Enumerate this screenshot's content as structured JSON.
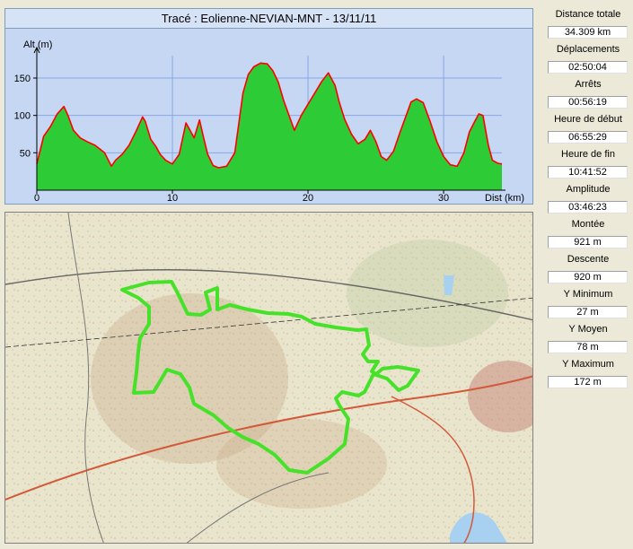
{
  "chart_title": "Tracé : Eolienne-NEVIAN-MNT - 13/11/11",
  "stats": [
    {
      "label": "Distance totale",
      "value": "34.309 km"
    },
    {
      "label": "Déplacements",
      "value": "02:50:04"
    },
    {
      "label": "Arrêts",
      "value": "00:56:19"
    },
    {
      "label": "Heure de début",
      "value": "06:55:29"
    },
    {
      "label": "Heure de fin",
      "value": "10:41:52"
    },
    {
      "label": "Amplitude",
      "value": "03:46:23"
    },
    {
      "label": "Montée",
      "value": "921 m"
    },
    {
      "label": "Descente",
      "value": "920 m"
    },
    {
      "label": "Y Minimum",
      "value": "27 m"
    },
    {
      "label": "Y Moyen",
      "value": "78 m"
    },
    {
      "label": "Y Maximum",
      "value": "172 m"
    }
  ],
  "colors": {
    "fill": "#2dcc36",
    "line": "#ff0000",
    "track": "#46e22a",
    "grid": "#8aa6e6",
    "panel": "#c6d7f4"
  },
  "chart_data": {
    "type": "area",
    "title": "Tracé : Eolienne-NEVIAN-MNT - 13/11/11",
    "xlabel": "Dist (km)",
    "ylabel": "Alt (m)",
    "xlim": [
      0,
      34.3
    ],
    "ylim": [
      0,
      180
    ],
    "xticks": [
      0,
      10,
      20,
      30
    ],
    "yticks": [
      50,
      100,
      150
    ],
    "grid": true,
    "x": [
      0,
      0.5,
      1,
      1.5,
      2,
      2.3,
      2.7,
      3.2,
      3.7,
      4.3,
      5,
      5.5,
      5.8,
      6.3,
      6.8,
      7.3,
      7.8,
      8,
      8.4,
      8.8,
      9.1,
      9.5,
      10,
      10.5,
      11,
      11.3,
      11.6,
      12,
      12.3,
      12.6,
      13,
      13.4,
      14,
      14.6,
      15.2,
      15.6,
      16,
      16.5,
      17,
      17.4,
      17.8,
      18.2,
      18.6,
      19,
      19.5,
      20,
      20.5,
      21,
      21.5,
      22,
      22.3,
      22.7,
      23.2,
      23.7,
      24.2,
      24.6,
      25,
      25.4,
      25.8,
      26.3,
      26.8,
      27.2,
      27.6,
      28,
      28.5,
      29,
      29.5,
      30,
      30.5,
      31,
      31.5,
      31.9,
      32.3,
      32.6,
      32.9,
      33.3,
      33.6,
      34,
      34.3
    ],
    "values": [
      35,
      72,
      85,
      102,
      112,
      100,
      80,
      70,
      65,
      60,
      50,
      32,
      40,
      48,
      60,
      78,
      98,
      92,
      68,
      58,
      48,
      40,
      35,
      48,
      90,
      80,
      70,
      94,
      70,
      48,
      33,
      30,
      32,
      50,
      130,
      155,
      165,
      170,
      169,
      160,
      145,
      120,
      100,
      80,
      100,
      115,
      130,
      145,
      157,
      140,
      118,
      95,
      75,
      62,
      68,
      80,
      65,
      45,
      40,
      52,
      78,
      98,
      118,
      122,
      117,
      92,
      65,
      45,
      34,
      32,
      50,
      78,
      92,
      102,
      100,
      60,
      40,
      36,
      35
    ]
  }
}
